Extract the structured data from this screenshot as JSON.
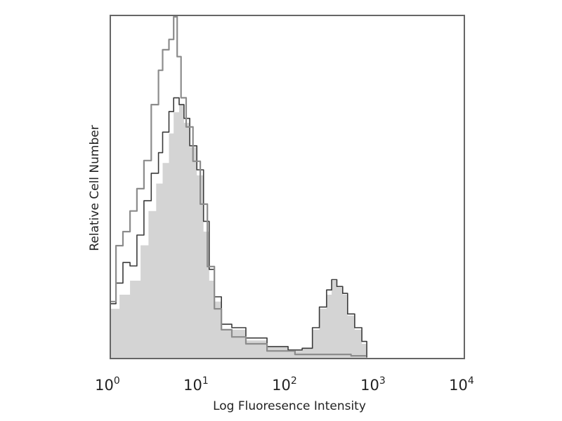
{
  "chart_data": {
    "type": "area",
    "title": "",
    "xlabel": "Log Fluoresence Intensity",
    "ylabel": "Relative Cell Number",
    "xscale": "log",
    "xlim": [
      1,
      10000
    ],
    "ylim": [
      0,
      100
    ],
    "grid": false,
    "x_ticks": [
      {
        "base": "10",
        "exp": "0"
      },
      {
        "base": "10",
        "exp": "1"
      },
      {
        "base": "10",
        "exp": "2"
      },
      {
        "base": "10",
        "exp": "3"
      },
      {
        "base": "10",
        "exp": "4"
      }
    ],
    "colors": {
      "fill": "#d4d4d4",
      "dark_outline": "#3a3a3a",
      "light_outline": "#8c8c8c",
      "frame": "#666666"
    },
    "series": [
      {
        "style": "filled",
        "x": [
          1.0,
          1.27,
          1.67,
          2.2,
          2.7,
          3.3,
          3.9,
          4.6,
          5.2,
          6.0,
          6.8,
          7.9,
          9.5,
          11.3,
          13.1,
          15,
          18,
          23.6,
          34,
          59,
          102,
          147,
          192,
          230,
          278,
          317,
          363,
          422,
          480,
          577,
          695,
          790
        ],
        "y": [
          14.5,
          18.6,
          22.7,
          33,
          43,
          51,
          57,
          65.6,
          71.8,
          74,
          68.7,
          61.6,
          53.4,
          37,
          22.7,
          16.6,
          8.4,
          8.4,
          5.3,
          3.3,
          2.2,
          2.9,
          8.4,
          14.5,
          18.6,
          22.7,
          20.7,
          18.6,
          12.5,
          8.4,
          4.3,
          0.2
        ]
      },
      {
        "style": "dark-outline",
        "x": [
          1.0,
          1.16,
          1.39,
          1.67,
          2.0,
          2.4,
          2.9,
          3.5,
          3.9,
          4.6,
          5.2,
          6.0,
          6.8,
          7.9,
          9.5,
          11.3,
          13.1,
          15,
          18,
          23.6,
          34,
          59,
          102,
          147,
          192,
          230,
          278,
          317,
          363,
          422,
          480,
          577,
          695,
          790
        ],
        "y": [
          16,
          22,
          28,
          27,
          36,
          46,
          54,
          60,
          66,
          72,
          76,
          74,
          70,
          62,
          55,
          40,
          26,
          18,
          10,
          9,
          6,
          3.5,
          2.5,
          3,
          9,
          15,
          20,
          23,
          21,
          19,
          13,
          9,
          5,
          0.3
        ]
      },
      {
        "style": "light-outline",
        "x": [
          1.0,
          1.16,
          1.39,
          1.67,
          2.0,
          2.4,
          2.9,
          3.5,
          3.9,
          4.6,
          5.2,
          5.7,
          6.3,
          7.2,
          8.6,
          10.4,
          12.5,
          15,
          18,
          23.6,
          34,
          59,
          122,
          252,
          525,
          760
        ],
        "y": [
          16.6,
          32.9,
          37,
          43,
          49.5,
          57.7,
          74,
          84,
          90,
          93,
          99.6,
          88,
          76,
          67.5,
          57.5,
          45,
          26.8,
          14.5,
          8.4,
          6.3,
          4.3,
          2.2,
          1.2,
          1.2,
          0.8,
          0.6
        ]
      }
    ]
  }
}
